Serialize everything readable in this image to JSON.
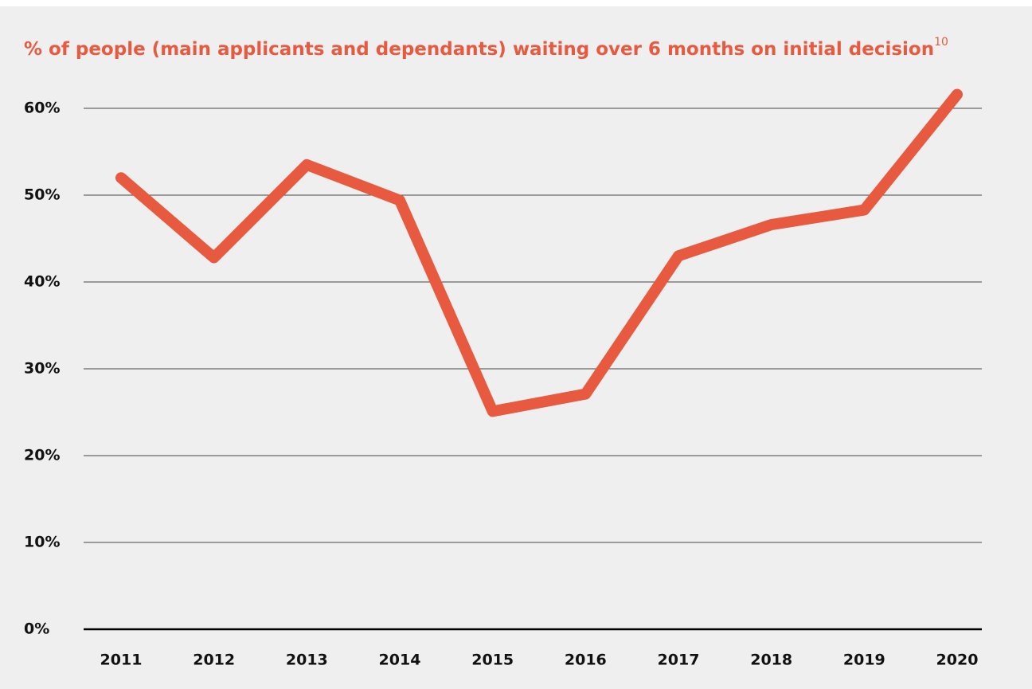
{
  "chart_data": {
    "type": "line",
    "title": "% of people (main applicants and dependants) waiting over 6 months on initial decision",
    "title_footnote": "10",
    "categories": [
      "2011",
      "2012",
      "2013",
      "2014",
      "2015",
      "2016",
      "2017",
      "2018",
      "2019",
      "2020"
    ],
    "values": [
      52.0,
      42.8,
      53.5,
      49.4,
      25.1,
      27.1,
      43.0,
      46.6,
      48.3,
      61.6
    ],
    "color": "#e85a40",
    "ylim": [
      0,
      65
    ],
    "yticks": [
      {
        "value": 0,
        "label": "0%"
      },
      {
        "value": 10,
        "label": "10%"
      },
      {
        "value": 20,
        "label": "20%"
      },
      {
        "value": 30,
        "label": "30%"
      },
      {
        "value": 40,
        "label": "40%"
      },
      {
        "value": 50,
        "label": "50%"
      },
      {
        "value": 60,
        "label": "60%"
      }
    ],
    "grid": true
  }
}
